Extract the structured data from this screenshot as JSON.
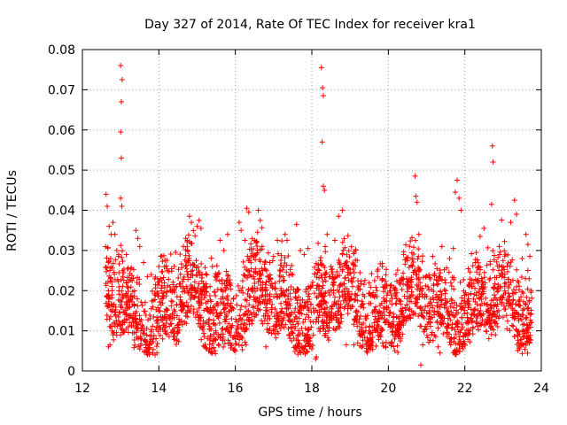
{
  "chart_data": {
    "type": "scatter",
    "title": "Day 327 of 2014, Rate Of TEC Index for receiver kra1",
    "xlabel": "GPS time / hours",
    "ylabel": "ROTI / TECUs",
    "xlim": [
      12,
      24
    ],
    "ylim": [
      0,
      0.08
    ],
    "xticks": [
      12,
      14,
      16,
      18,
      20,
      22,
      24
    ],
    "xtick_labels": [
      "12",
      "14",
      "16",
      "18",
      "20",
      "22",
      "24"
    ],
    "yticks": [
      0,
      0.01,
      0.02,
      0.03,
      0.04,
      0.05,
      0.06,
      0.07,
      0.08
    ],
    "ytick_labels": [
      "0",
      "0.01",
      "0.02",
      "0.03",
      "0.04",
      "0.05",
      "0.06",
      "0.07",
      "0.08"
    ],
    "grid": true,
    "marker": "+",
    "color": "#ff0000",
    "series": [
      {
        "name": "ROTI",
        "points": [
          [
            12.62,
            0.044
          ],
          [
            12.65,
            0.041
          ],
          [
            12.7,
            0.036
          ],
          [
            12.75,
            0.034
          ],
          [
            12.8,
            0.037
          ],
          [
            12.85,
            0.034
          ],
          [
            12.9,
            0.03
          ],
          [
            12.95,
            0.029
          ],
          [
            13.0,
            0.076
          ],
          [
            13.02,
            0.067
          ],
          [
            13.04,
            0.0725
          ],
          [
            13.0,
            0.0595
          ],
          [
            13.02,
            0.053
          ],
          [
            13.0,
            0.043
          ],
          [
            13.03,
            0.041
          ],
          [
            12.68,
            0.006
          ],
          [
            12.72,
            0.0065
          ],
          [
            12.8,
            0.009
          ],
          [
            13.1,
            0.012
          ],
          [
            13.2,
            0.011
          ],
          [
            13.35,
            0.0058
          ],
          [
            13.4,
            0.035
          ],
          [
            13.45,
            0.033
          ],
          [
            13.5,
            0.031
          ],
          [
            13.6,
            0.027
          ],
          [
            13.7,
            0.0235
          ],
          [
            13.8,
            0.024
          ],
          [
            13.9,
            0.004
          ],
          [
            13.95,
            0.0045
          ],
          [
            14.0,
            0.026
          ],
          [
            14.05,
            0.0285
          ],
          [
            14.1,
            0.008
          ],
          [
            14.2,
            0.014
          ],
          [
            14.3,
            0.02
          ],
          [
            14.4,
            0.026
          ],
          [
            14.5,
            0.0095
          ],
          [
            14.6,
            0.015
          ],
          [
            14.7,
            0.033
          ],
          [
            14.75,
            0.03
          ],
          [
            14.8,
            0.0385
          ],
          [
            14.85,
            0.037
          ],
          [
            14.95,
            0.02
          ],
          [
            15.0,
            0.036
          ],
          [
            15.05,
            0.0375
          ],
          [
            15.1,
            0.0355
          ],
          [
            15.2,
            0.006
          ],
          [
            15.3,
            0.0125
          ],
          [
            15.4,
            0.026
          ],
          [
            15.5,
            0.0095
          ],
          [
            15.6,
            0.0325
          ],
          [
            15.7,
            0.03
          ],
          [
            15.8,
            0.034
          ],
          [
            15.9,
            0.013
          ],
          [
            16.0,
            0.008
          ],
          [
            16.1,
            0.037
          ],
          [
            16.15,
            0.035
          ],
          [
            16.25,
            0.0325
          ],
          [
            16.3,
            0.0405
          ],
          [
            16.35,
            0.0395
          ],
          [
            16.4,
            0.0145
          ],
          [
            16.5,
            0.0325
          ],
          [
            16.6,
            0.04
          ],
          [
            16.65,
            0.0375
          ],
          [
            16.7,
            0.031
          ],
          [
            16.8,
            0.006
          ],
          [
            16.9,
            0.027
          ],
          [
            17.0,
            0.0285
          ],
          [
            17.1,
            0.0325
          ],
          [
            17.2,
            0.02
          ],
          [
            17.3,
            0.034
          ],
          [
            17.35,
            0.0325
          ],
          [
            17.4,
            0.009
          ],
          [
            17.5,
            0.024
          ],
          [
            17.6,
            0.0365
          ],
          [
            17.7,
            0.03
          ],
          [
            17.8,
            0.029
          ],
          [
            17.9,
            0.0305
          ],
          [
            18.0,
            0.0055
          ],
          [
            18.1,
            0.003
          ],
          [
            18.12,
            0.0035
          ],
          [
            18.2,
            0.025
          ],
          [
            18.25,
            0.0755
          ],
          [
            18.28,
            0.0705
          ],
          [
            18.3,
            0.0685
          ],
          [
            18.27,
            0.057
          ],
          [
            18.3,
            0.046
          ],
          [
            18.33,
            0.045
          ],
          [
            18.35,
            0.031
          ],
          [
            18.4,
            0.034
          ],
          [
            18.45,
            0.0235
          ],
          [
            18.5,
            0.026
          ],
          [
            18.6,
            0.0325
          ],
          [
            18.7,
            0.0385
          ],
          [
            18.8,
            0.04
          ],
          [
            18.9,
            0.0065
          ],
          [
            19.0,
            0.016
          ],
          [
            19.1,
            0.0065
          ],
          [
            19.2,
            0.007
          ],
          [
            19.3,
            0.0105
          ],
          [
            19.4,
            0.013
          ],
          [
            19.5,
            0.0075
          ],
          [
            19.6,
            0.0195
          ],
          [
            19.7,
            0.02
          ],
          [
            19.8,
            0.0085
          ],
          [
            19.9,
            0.021
          ],
          [
            20.0,
            0.012
          ],
          [
            20.1,
            0.007
          ],
          [
            20.2,
            0.0185
          ],
          [
            20.3,
            0.0225
          ],
          [
            20.4,
            0.029
          ],
          [
            20.5,
            0.0275
          ],
          [
            20.6,
            0.022
          ],
          [
            20.7,
            0.0485
          ],
          [
            20.72,
            0.0435
          ],
          [
            20.75,
            0.042
          ],
          [
            20.8,
            0.034
          ],
          [
            20.85,
            0.0015
          ],
          [
            20.9,
            0.0065
          ],
          [
            21.0,
            0.0105
          ],
          [
            21.1,
            0.013
          ],
          [
            21.2,
            0.014
          ],
          [
            21.3,
            0.006
          ],
          [
            21.35,
            0.0045
          ],
          [
            21.4,
            0.031
          ],
          [
            21.5,
            0.02
          ],
          [
            21.6,
            0.028
          ],
          [
            21.7,
            0.0305
          ],
          [
            21.75,
            0.0445
          ],
          [
            21.8,
            0.0475
          ],
          [
            21.85,
            0.043
          ],
          [
            21.9,
            0.04
          ],
          [
            22.0,
            0.0065
          ],
          [
            22.1,
            0.019
          ],
          [
            22.2,
            0.0125
          ],
          [
            22.3,
            0.0295
          ],
          [
            22.4,
            0.0335
          ],
          [
            22.5,
            0.0355
          ],
          [
            22.6,
            0.015
          ],
          [
            22.7,
            0.0415
          ],
          [
            22.72,
            0.056
          ],
          [
            22.74,
            0.052
          ],
          [
            22.8,
            0.009
          ],
          [
            22.9,
            0.031
          ],
          [
            23.0,
            0.0275
          ],
          [
            23.1,
            0.0105
          ],
          [
            23.2,
            0.037
          ],
          [
            23.3,
            0.0425
          ],
          [
            23.35,
            0.039
          ],
          [
            23.4,
            0.0165
          ],
          [
            23.5,
            0.028
          ],
          [
            23.6,
            0.034
          ],
          [
            23.65,
            0.0315
          ],
          [
            23.7,
            0.0285
          ],
          [
            23.72,
            0.012
          ]
        ],
        "dense_band": {
          "description": "dense point cloud",
          "x_range": [
            12.6,
            23.75
          ],
          "typical_range": [
            0.006,
            0.03
          ]
        }
      }
    ]
  }
}
